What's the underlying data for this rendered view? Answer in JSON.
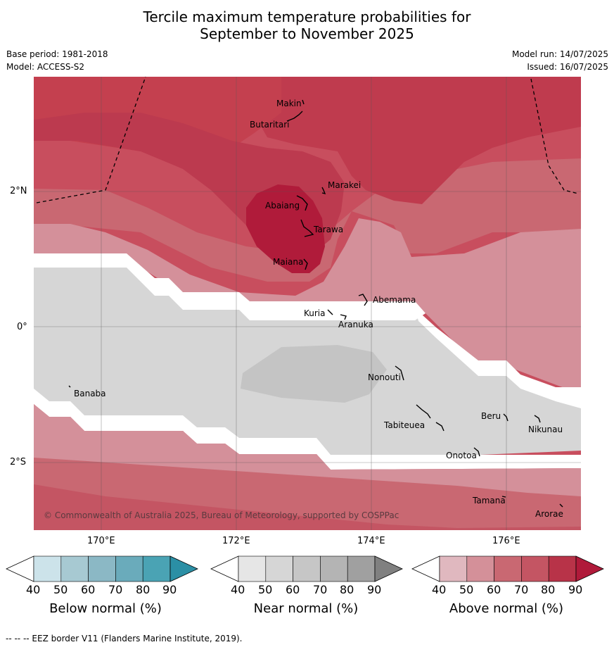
{
  "title": {
    "line1": "Tercile maximum temperature probabilities for",
    "line2": "September to November 2025"
  },
  "meta": {
    "base_period": "Base period: 1981-2018",
    "model": "Model: ACCESS-S2",
    "model_run": "Model run: 14/07/2025",
    "issued": "Issued: 16/07/2025"
  },
  "axes": {
    "lat_labels": [
      "2°N",
      "0°",
      "2°S"
    ],
    "lon_labels": [
      "170°E",
      "172°E",
      "174°E",
      "176°E"
    ]
  },
  "places": [
    {
      "name": "Makin"
    },
    {
      "name": "Butaritari"
    },
    {
      "name": "Marakei"
    },
    {
      "name": "Abaiang"
    },
    {
      "name": "Tarawa"
    },
    {
      "name": "Maiana"
    },
    {
      "name": "Abemama"
    },
    {
      "name": "Kuria"
    },
    {
      "name": "Aranuka"
    },
    {
      "name": "Nonouti"
    },
    {
      "name": "Banaba"
    },
    {
      "name": "Beru"
    },
    {
      "name": "Tabiteuea"
    },
    {
      "name": "Nikunau"
    },
    {
      "name": "Onotoa"
    },
    {
      "name": "Tamana"
    },
    {
      "name": "Arorae"
    }
  ],
  "copyright": "© Commonwealth of Australia 2025, Bureau of Meteorology, supported by COSPPac",
  "colorbars": [
    {
      "label": "Below normal (%)",
      "ticks": [
        "40",
        "50",
        "60",
        "70",
        "80",
        "90"
      ],
      "colors": [
        "#ffffff",
        "#cce3ea",
        "#a7c9d2",
        "#8bb8c5",
        "#6aabbb",
        "#4aa3b4",
        "#2b8fa5"
      ]
    },
    {
      "label": "Near normal (%)",
      "ticks": [
        "40",
        "50",
        "60",
        "70",
        "80",
        "90"
      ],
      "colors": [
        "#ffffff",
        "#e6e6e6",
        "#d6d6d6",
        "#c6c6c6",
        "#b4b4b4",
        "#a0a0a0",
        "#808080"
      ]
    },
    {
      "label": "Above normal (%)",
      "ticks": [
        "40",
        "50",
        "60",
        "70",
        "80",
        "90"
      ],
      "colors": [
        "#ffffff",
        "#e0b8bf",
        "#d49099",
        "#c96872",
        "#c45563",
        "#b83348",
        "#b01a3a"
      ]
    }
  ],
  "footer": "-- -- -- EEZ border V11 (Flanders Marine Institute, 2019)."
}
